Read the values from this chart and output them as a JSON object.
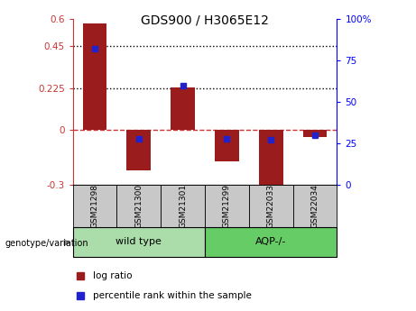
{
  "title": "GDS900 / H3065E12",
  "samples": [
    "GSM21298",
    "GSM21300",
    "GSM21301",
    "GSM21299",
    "GSM22033",
    "GSM22034"
  ],
  "log_ratios": [
    0.575,
    -0.22,
    0.23,
    -0.17,
    -0.345,
    -0.04
  ],
  "percentile_ranks": [
    82,
    28,
    60,
    28,
    27,
    30
  ],
  "ylim_left": [
    -0.3,
    0.6
  ],
  "ylim_right": [
    0,
    100
  ],
  "yticks_left": [
    -0.3,
    0,
    0.225,
    0.45,
    0.6
  ],
  "ytick_labels_left": [
    "-0.3",
    "0",
    "0.225",
    "0.45",
    "0.6"
  ],
  "yticks_right": [
    0,
    25,
    50,
    75,
    100
  ],
  "ytick_labels_right": [
    "0",
    "25",
    "50",
    "75",
    "100%"
  ],
  "hlines": [
    0.45,
    0.225
  ],
  "bar_color": "#9B1C1C",
  "dot_color": "#2222CC",
  "zero_line_color": "#CC3333",
  "genotype_label": "genotype/variation",
  "legend_log_ratio": "log ratio",
  "legend_percentile": "percentile rank within the sample",
  "group_bg_color_wt": "#AADDAA",
  "group_bg_color_aqp": "#66CC66",
  "header_bg_color": "#C8C8C8",
  "group_ranges": [
    [
      -0.5,
      2.5,
      "wild type"
    ],
    [
      2.5,
      5.5,
      "AQP-/-"
    ]
  ],
  "group_colors": [
    "#AADDAA",
    "#66CC66"
  ]
}
